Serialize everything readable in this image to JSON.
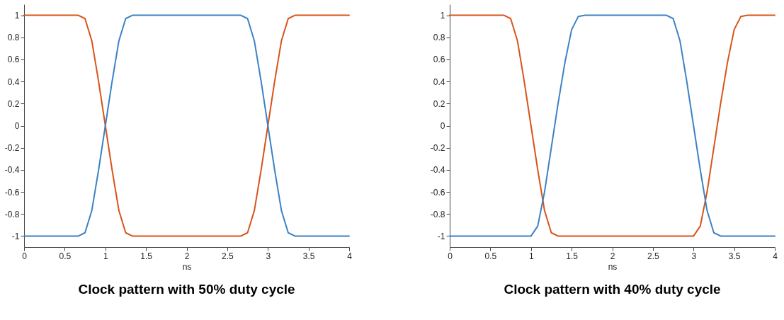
{
  "chart_data": [
    {
      "type": "line",
      "title": "Clock pattern with 50% duty cycle",
      "xlabel": "ns",
      "xlim": [
        0,
        4
      ],
      "xticks": [
        0,
        0.5,
        1,
        1.5,
        2,
        2.5,
        3,
        3.5,
        4
      ],
      "ylim": [
        -1.1,
        1.1
      ],
      "yticks": [
        -1,
        -0.8,
        -0.6,
        -0.4,
        -0.2,
        0,
        0.2,
        0.4,
        0.6,
        0.8,
        1
      ],
      "grid": false,
      "legend": false,
      "x": [
        0,
        0.667,
        0.75,
        0.833,
        0.917,
        1,
        1.083,
        1.167,
        1.25,
        1.333,
        2.667,
        2.75,
        2.833,
        2.917,
        3,
        3.083,
        3.167,
        3.25,
        3.333,
        4
      ],
      "series": [
        {
          "color": "#d95319",
          "values": [
            1,
            1,
            0.97,
            0.77,
            0.4,
            0,
            -0.4,
            -0.77,
            -0.97,
            -1,
            -1,
            -0.97,
            -0.77,
            -0.4,
            0,
            0.4,
            0.77,
            0.97,
            1,
            1
          ]
        },
        {
          "color": "#3b82c4",
          "values": [
            -1,
            -1,
            -0.97,
            -0.77,
            -0.4,
            0,
            0.4,
            0.77,
            0.97,
            1,
            1,
            0.97,
            0.77,
            0.4,
            0,
            -0.4,
            -0.77,
            -0.97,
            -1,
            -1
          ]
        }
      ]
    },
    {
      "type": "line",
      "title": "Clock pattern with 40% duty cycle",
      "xlabel": "ns",
      "xlim": [
        0,
        4
      ],
      "xticks": [
        0,
        0.5,
        1,
        1.5,
        2,
        2.5,
        3,
        3.5,
        4
      ],
      "ylim": [
        -1.1,
        1.1
      ],
      "yticks": [
        -1,
        -0.8,
        -0.6,
        -0.4,
        -0.2,
        0,
        0.2,
        0.4,
        0.6,
        0.8,
        1
      ],
      "grid": false,
      "legend": false,
      "series": [
        {
          "color": "#d95319",
          "x": [
            0,
            0.667,
            0.75,
            0.833,
            0.917,
            1,
            1.083,
            1.167,
            1.25,
            1.333,
            3,
            3.083,
            3.167,
            3.25,
            3.333,
            3.417,
            3.5,
            3.583,
            3.667,
            4
          ],
          "values": [
            1,
            1,
            0.97,
            0.77,
            0.4,
            0,
            -0.4,
            -0.77,
            -0.97,
            -1,
            -1,
            -0.91,
            -0.6,
            -0.2,
            0.2,
            0.57,
            0.87,
            0.99,
            1,
            1
          ]
        },
        {
          "color": "#3b82c4",
          "x": [
            0,
            1,
            1.083,
            1.167,
            1.25,
            1.333,
            1.417,
            1.5,
            1.583,
            1.667,
            2.667,
            2.75,
            2.833,
            2.917,
            3,
            3.083,
            3.167,
            3.25,
            3.333,
            4
          ],
          "values": [
            -1,
            -1,
            -0.91,
            -0.6,
            -0.2,
            0.2,
            0.57,
            0.87,
            0.99,
            1,
            1,
            0.97,
            0.77,
            0.4,
            0,
            -0.4,
            -0.77,
            -0.97,
            -1,
            -1
          ]
        }
      ]
    }
  ]
}
